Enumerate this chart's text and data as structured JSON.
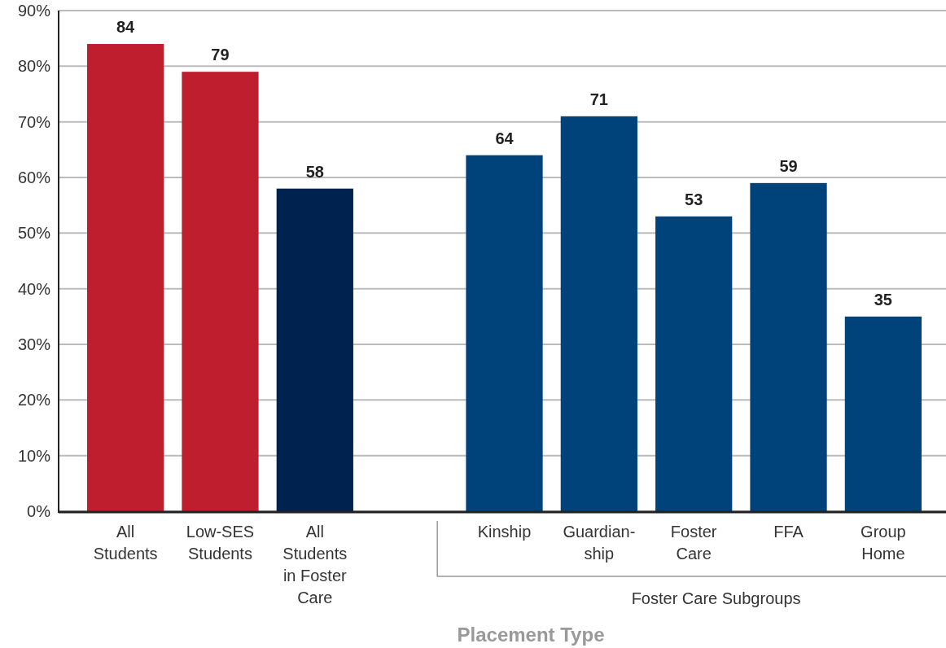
{
  "chart_data": {
    "type": "bar",
    "xlabel": "Placement Type",
    "categories": [
      "All\nStudents",
      "Low-SES\nStudents",
      "All\nStudents\nin Foster\nCare",
      null,
      "Kinship",
      "Guardian-\nship",
      "Foster\nCare",
      "FFA",
      "Group\nHome"
    ],
    "values": [
      84,
      79,
      58,
      null,
      64,
      71,
      53,
      59,
      35
    ],
    "colors": [
      "#be1e2d",
      "#be1e2d",
      "#00224e",
      null,
      "#00427a",
      "#00427a",
      "#00427a",
      "#00427a",
      "#00427a"
    ],
    "ylim": [
      0,
      90
    ],
    "yticks": [
      {
        "value": 0,
        "label": "0%"
      },
      {
        "value": 10,
        "label": "10%"
      },
      {
        "value": 20,
        "label": "20%"
      },
      {
        "value": 30,
        "label": "30%"
      },
      {
        "value": 40,
        "label": "40%"
      },
      {
        "value": 50,
        "label": "50%"
      },
      {
        "value": 60,
        "label": "60%"
      },
      {
        "value": 70,
        "label": "70%"
      },
      {
        "value": 80,
        "label": "80%"
      },
      {
        "value": 90,
        "label": "90%"
      }
    ],
    "grid": "y",
    "data_labels": true,
    "annotations": [
      "Foster Care Subgroups"
    ]
  }
}
